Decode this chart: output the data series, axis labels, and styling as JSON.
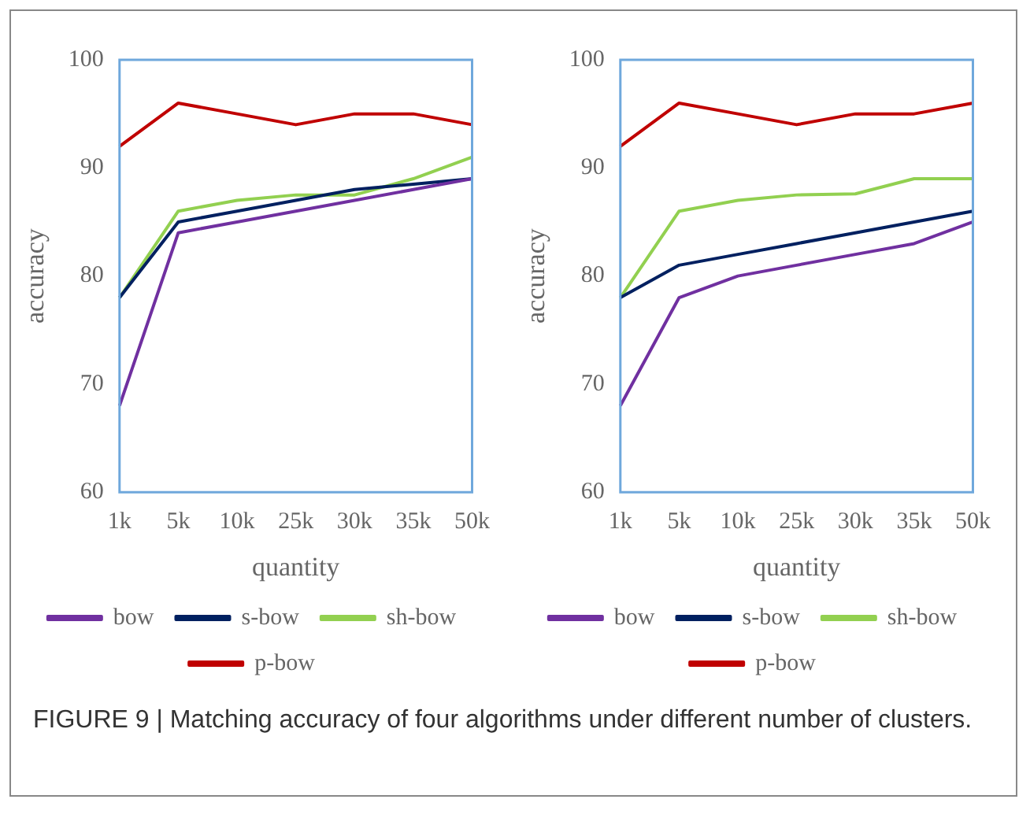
{
  "chart_data": [
    {
      "type": "line",
      "xlabel": "quantity",
      "ylabel": "accuracy",
      "categories": [
        "1k",
        "5k",
        "10k",
        "25k",
        "30k",
        "35k",
        "50k"
      ],
      "series": [
        {
          "name": "bow",
          "color": "#7030a0",
          "values": [
            68,
            84,
            85,
            86,
            87,
            88,
            89
          ]
        },
        {
          "name": "s-bow",
          "color": "#002060",
          "values": [
            78,
            85,
            86,
            87,
            88,
            88.5,
            89
          ]
        },
        {
          "name": "sh-bow",
          "color": "#92d050",
          "values": [
            78,
            86,
            87,
            87.5,
            87.5,
            89,
            91
          ]
        },
        {
          "name": "p-bow",
          "color": "#c00000",
          "values": [
            92,
            96,
            95,
            94,
            95,
            95,
            94
          ]
        }
      ],
      "ylim": [
        60,
        100
      ],
      "yticks": [
        60,
        70,
        80,
        90,
        100
      ],
      "grid": false,
      "legend": "bottom",
      "marker": "none",
      "line_style": "solid",
      "annotations": [
        "FIGURE 9 | Matching accuracy of four algorithms under different number of clusters."
      ]
    },
    {
      "type": "line",
      "xlabel": "quantity",
      "ylabel": "accuracy",
      "categories": [
        "1k",
        "5k",
        "10k",
        "25k",
        "30k",
        "35k",
        "50k"
      ],
      "series": [
        {
          "name": "bow",
          "color": "#7030a0",
          "values": [
            68,
            78,
            80,
            81,
            82,
            83,
            85
          ]
        },
        {
          "name": "s-bow",
          "color": "#002060",
          "values": [
            78,
            81,
            82,
            83,
            84,
            85,
            86
          ]
        },
        {
          "name": "sh-bow",
          "color": "#92d050",
          "values": [
            78,
            86,
            87,
            87.5,
            87.6,
            89,
            89
          ]
        },
        {
          "name": "p-bow",
          "color": "#c00000",
          "values": [
            92,
            96,
            95,
            94,
            95,
            95,
            96
          ]
        }
      ],
      "ylim": [
        60,
        100
      ],
      "yticks": [
        60,
        70,
        80,
        90,
        100
      ],
      "grid": false,
      "legend": "bottom",
      "marker": "none",
      "line_style": "solid"
    }
  ]
}
